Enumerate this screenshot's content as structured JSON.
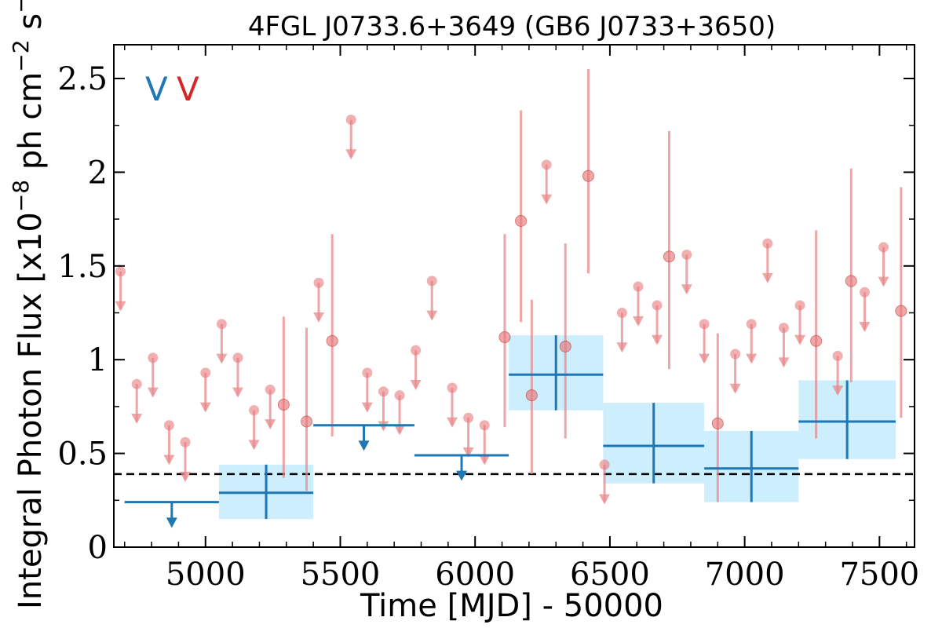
{
  "chart_data": {
    "type": "scatter",
    "title": "4FGL J0733.6+3649 (GB6 J0733+3650)",
    "xlabel": "Time [MJD] - 50000",
    "ylabel": "Integral Photon Flux [x10",
    "ylabel_exp1": "−8",
    "ylabel_mid": " ph cm",
    "ylabel_exp2": "−2",
    "ylabel_mid2": " s",
    "ylabel_exp3": "−1",
    "ylabel_end": "]",
    "xlim": [
      4660,
      7630
    ],
    "ylim": [
      0,
      2.68
    ],
    "x_ticks": [
      5000,
      5500,
      6000,
      6500,
      7000,
      7500
    ],
    "x_tick_labels": [
      "5000",
      "5500",
      "6000",
      "6500",
      "7000",
      "7500"
    ],
    "y_ticks": [
      0,
      0.5,
      1,
      1.5,
      2,
      2.5
    ],
    "y_tick_labels": [
      "0",
      "0.5",
      "1",
      "1.5",
      "2",
      "2.5"
    ],
    "legend": [
      {
        "label": "V",
        "color": "#1f77b4"
      },
      {
        "label": "V",
        "color": "#d62728"
      }
    ],
    "legend_position": "top-left",
    "reference_line": {
      "y": 0.39,
      "style": "dashed"
    },
    "colors": {
      "long_bins": "#1f77b4",
      "long_band": "#cdeefc",
      "short_bins": "#e8898c",
      "short_points": "#e7797d"
    },
    "long_bins": [
      {
        "x_lo": 4700,
        "x_hi": 5050,
        "y": 0.24,
        "upper_limit": true
      },
      {
        "x_lo": 5050,
        "x_hi": 5400,
        "y": 0.29,
        "band": [
          0.15,
          0.44
        ],
        "err": [
          0.15,
          0.44
        ]
      },
      {
        "x_lo": 5400,
        "x_hi": 5775,
        "y": 0.65,
        "upper_limit": true
      },
      {
        "x_lo": 5775,
        "x_hi": 6125,
        "y": 0.49,
        "upper_limit": true
      },
      {
        "x_lo": 6125,
        "x_hi": 6475,
        "y": 0.92,
        "band": [
          0.73,
          1.13
        ],
        "err": [
          0.73,
          1.13
        ]
      },
      {
        "x_lo": 6475,
        "x_hi": 6850,
        "y": 0.54,
        "band": [
          0.34,
          0.77
        ],
        "err": [
          0.34,
          0.77
        ]
      },
      {
        "x_lo": 6850,
        "x_hi": 7200,
        "y": 0.42,
        "band": [
          0.24,
          0.62
        ],
        "err": [
          0.24,
          0.62
        ]
      },
      {
        "x_lo": 7200,
        "x_hi": 7560,
        "y": 0.67,
        "band": [
          0.47,
          0.89
        ],
        "err": [
          0.47,
          0.89
        ]
      }
    ],
    "short_upper_limits": [
      {
        "x": 4685,
        "y": 1.47
      },
      {
        "x": 4745,
        "y": 0.87
      },
      {
        "x": 4805,
        "y": 1.01
      },
      {
        "x": 4865,
        "y": 0.65
      },
      {
        "x": 4925,
        "y": 0.56
      },
      {
        "x": 5000,
        "y": 0.93
      },
      {
        "x": 5060,
        "y": 1.19
      },
      {
        "x": 5120,
        "y": 1.01
      },
      {
        "x": 5180,
        "y": 0.73
      },
      {
        "x": 5240,
        "y": 0.84
      },
      {
        "x": 5420,
        "y": 1.41
      },
      {
        "x": 5540,
        "y": 2.28
      },
      {
        "x": 5600,
        "y": 0.93
      },
      {
        "x": 5660,
        "y": 0.83
      },
      {
        "x": 5720,
        "y": 0.81
      },
      {
        "x": 5780,
        "y": 1.05
      },
      {
        "x": 5840,
        "y": 1.42
      },
      {
        "x": 5915,
        "y": 0.85
      },
      {
        "x": 5975,
        "y": 0.69
      },
      {
        "x": 6035,
        "y": 0.65
      },
      {
        "x": 6265,
        "y": 2.04
      },
      {
        "x": 6480,
        "y": 0.44
      },
      {
        "x": 6545,
        "y": 1.25
      },
      {
        "x": 6605,
        "y": 1.39
      },
      {
        "x": 6675,
        "y": 1.29
      },
      {
        "x": 6785,
        "y": 1.56
      },
      {
        "x": 6850,
        "y": 1.19
      },
      {
        "x": 6965,
        "y": 1.03
      },
      {
        "x": 7025,
        "y": 1.19
      },
      {
        "x": 7085,
        "y": 1.62
      },
      {
        "x": 7145,
        "y": 1.17
      },
      {
        "x": 7205,
        "y": 1.29
      },
      {
        "x": 7345,
        "y": 1.02
      },
      {
        "x": 7445,
        "y": 1.36
      },
      {
        "x": 7515,
        "y": 1.6
      }
    ],
    "short_detections": [
      {
        "x": 5290,
        "y": 0.76,
        "lo": 0.37,
        "hi": 1.23
      },
      {
        "x": 5375,
        "y": 0.67,
        "lo": 0.3,
        "hi": 1.17
      },
      {
        "x": 5470,
        "y": 1.1,
        "lo": 0.59,
        "hi": 1.67
      },
      {
        "x": 6110,
        "y": 1.12,
        "lo": 0.64,
        "hi": 1.67
      },
      {
        "x": 6170,
        "y": 1.74,
        "lo": 1.2,
        "hi": 2.33
      },
      {
        "x": 6210,
        "y": 0.81,
        "lo": 0.39,
        "hi": 1.32
      },
      {
        "x": 6335,
        "y": 1.07,
        "lo": 0.58,
        "hi": 1.62
      },
      {
        "x": 6420,
        "y": 1.98,
        "lo": 1.46,
        "hi": 2.55
      },
      {
        "x": 6720,
        "y": 1.55,
        "lo": 0.95,
        "hi": 2.22
      },
      {
        "x": 6900,
        "y": 0.66,
        "lo": 0.24,
        "hi": 1.14
      },
      {
        "x": 7265,
        "y": 1.1,
        "lo": 0.58,
        "hi": 1.69
      },
      {
        "x": 7395,
        "y": 1.42,
        "lo": 0.88,
        "hi": 2.02
      },
      {
        "x": 7580,
        "y": 1.26,
        "lo": 0.69,
        "hi": 1.92
      }
    ]
  }
}
